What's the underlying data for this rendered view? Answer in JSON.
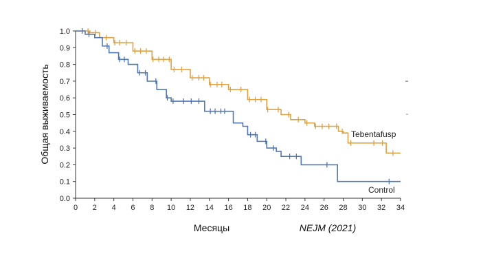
{
  "chart_data": {
    "type": "line",
    "subtype": "kaplan-meier",
    "xlabel": "Месяцы",
    "ylabel": "Общая выживаемость",
    "source": "NEJM (2021)",
    "xlim": [
      0,
      34
    ],
    "ylim": [
      0,
      1.0
    ],
    "x_ticks": [
      "0",
      "2",
      "4",
      "6",
      "8",
      "10",
      "12",
      "14",
      "16",
      "18",
      "20",
      "22",
      "24",
      "26",
      "28",
      "30",
      "32",
      "34"
    ],
    "y_ticks": [
      "0.0",
      "0.1",
      "0.2",
      "0.3",
      "0.4",
      "0.5",
      "0.6",
      "0.7",
      "0.8",
      "0.9",
      "1.0"
    ],
    "grid": false,
    "series": [
      {
        "name": "Tebentafusp",
        "color": "#e0a243",
        "points": [
          [
            0,
            1.0
          ],
          [
            1.5,
            0.99
          ],
          [
            2.5,
            0.96
          ],
          [
            4,
            0.93
          ],
          [
            6,
            0.88
          ],
          [
            8,
            0.83
          ],
          [
            10,
            0.77
          ],
          [
            12,
            0.72
          ],
          [
            14,
            0.68
          ],
          [
            16,
            0.65
          ],
          [
            18,
            0.59
          ],
          [
            20,
            0.53
          ],
          [
            21.5,
            0.5
          ],
          [
            22.5,
            0.47
          ],
          [
            24,
            0.45
          ],
          [
            25,
            0.43
          ],
          [
            27,
            0.43
          ],
          [
            27.5,
            0.4
          ],
          [
            28,
            0.39
          ],
          [
            28.5,
            0.33
          ],
          [
            32.3,
            0.33
          ],
          [
            32.5,
            0.27
          ],
          [
            34,
            0.27
          ]
        ],
        "censor_x": [
          1.3,
          2.1,
          3.2,
          4.1,
          4.6,
          5.3,
          6.2,
          6.8,
          7.4,
          8.1,
          8.7,
          9.2,
          9.8,
          10.3,
          11.1,
          12.2,
          12.9,
          13.4,
          14.1,
          14.8,
          15.3,
          16.2,
          17.3,
          18.2,
          18.8,
          19.4,
          20.1,
          21.2,
          22.3,
          23.3,
          24.2,
          25.1,
          25.8,
          26.5,
          27.3,
          27.9,
          28.8,
          31.2,
          32.1,
          33.2
        ]
      },
      {
        "name": "Control",
        "color": "#4f78b8",
        "points": [
          [
            0,
            1.0
          ],
          [
            1,
            0.98
          ],
          [
            2,
            0.96
          ],
          [
            2.8,
            0.91
          ],
          [
            3.5,
            0.87
          ],
          [
            4.5,
            0.83
          ],
          [
            5.5,
            0.8
          ],
          [
            6.5,
            0.75
          ],
          [
            7.5,
            0.7
          ],
          [
            8.5,
            0.65
          ],
          [
            9.5,
            0.6
          ],
          [
            10,
            0.58
          ],
          [
            13,
            0.58
          ],
          [
            13.5,
            0.52
          ],
          [
            16,
            0.52
          ],
          [
            16.5,
            0.45
          ],
          [
            17.5,
            0.43
          ],
          [
            18,
            0.38
          ],
          [
            19,
            0.34
          ],
          [
            20,
            0.3
          ],
          [
            21,
            0.28
          ],
          [
            21.5,
            0.25
          ],
          [
            23.5,
            0.25
          ],
          [
            23.6,
            0.2
          ],
          [
            27.3,
            0.2
          ],
          [
            27.4,
            0.1
          ],
          [
            34,
            0.1
          ]
        ],
        "censor_x": [
          0.7,
          1.4,
          3.3,
          4.6,
          5.1,
          6.7,
          7.3,
          8.4,
          9.6,
          10.2,
          11.3,
          12.1,
          12.9,
          14.1,
          14.6,
          15.2,
          15.6,
          18.3,
          18.8,
          19.9,
          20.7,
          22.4,
          23.1,
          26.3,
          32.8
        ]
      }
    ]
  }
}
